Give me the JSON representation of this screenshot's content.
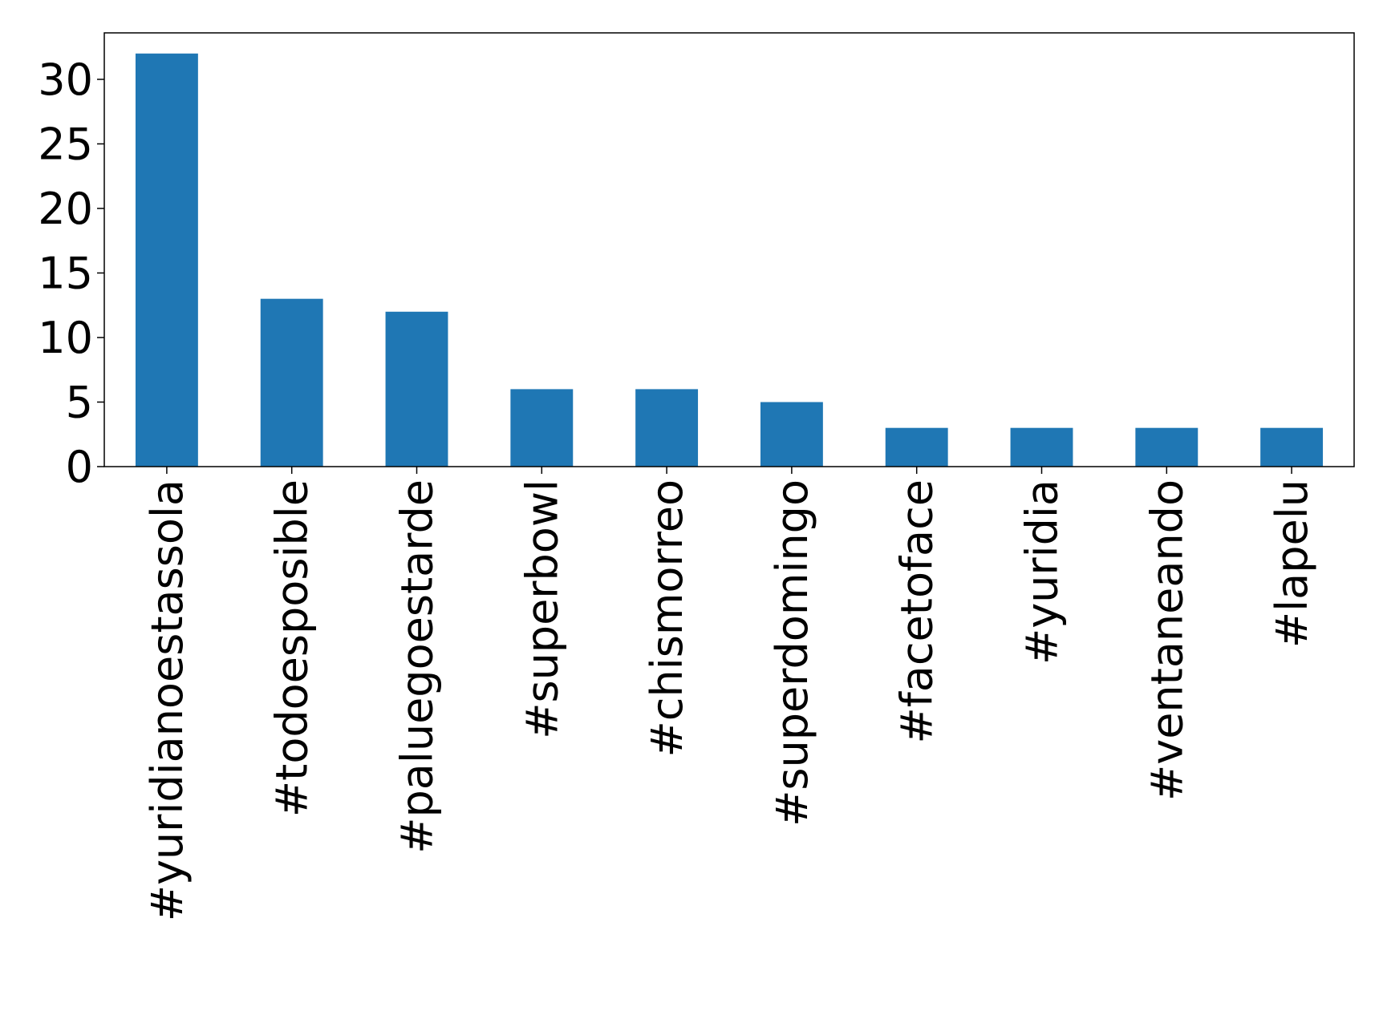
{
  "chart_data": {
    "type": "bar",
    "categories": [
      "#yuridianoestassola",
      "#todoesposible",
      "#paluegoestarde",
      "#superbowl",
      "#chismorreo",
      "#superdomingo",
      "#facetoface",
      "#yuridia",
      "#ventaneando",
      "#lapelu"
    ],
    "values": [
      32,
      13,
      12,
      6,
      6,
      5,
      3,
      3,
      3,
      3
    ],
    "color": "#1f77b4",
    "ylim": [
      0,
      33.6
    ],
    "yticks": [
      0,
      5,
      10,
      15,
      20,
      25,
      30
    ],
    "grid": false
  }
}
